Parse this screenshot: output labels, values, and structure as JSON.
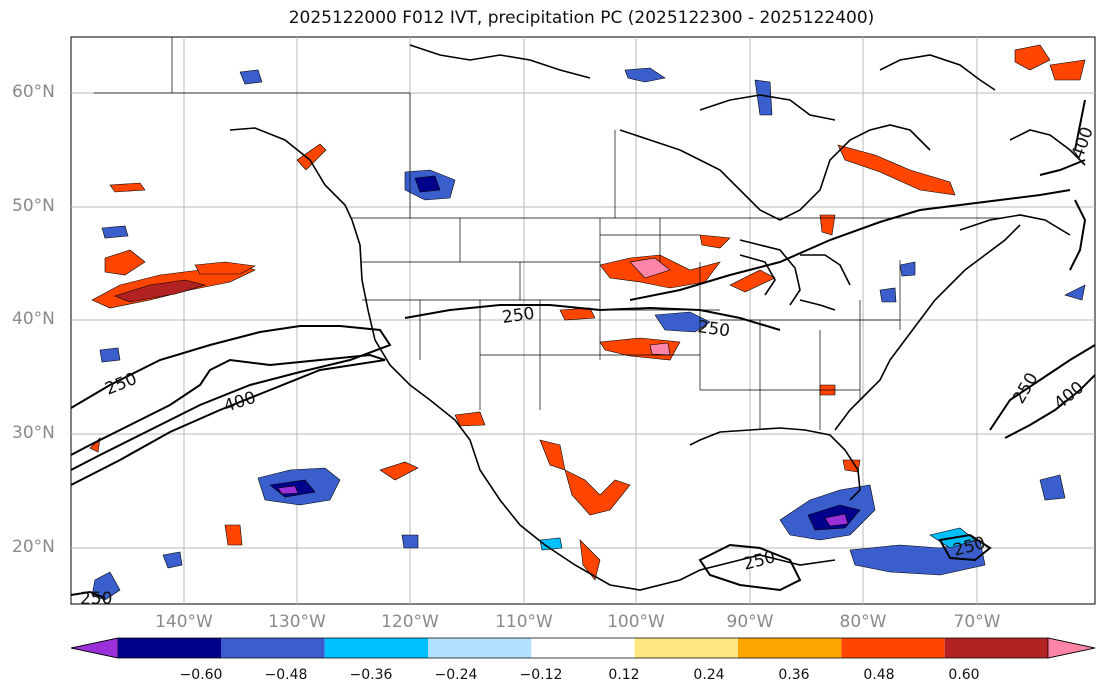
{
  "title": "2025122000 F012 IVT, precipitation PC (2025122300 - 2025122400)",
  "lat_labels": [
    "60°N",
    "50°N",
    "40°N",
    "30°N",
    "20°N"
  ],
  "lon_labels": [
    "140°W",
    "130°W",
    "120°W",
    "110°W",
    "100°W",
    "90°W",
    "80°W",
    "70°W"
  ],
  "contour_labels": [
    "250",
    "400",
    "250",
    "250",
    "250",
    "250",
    "400",
    "250",
    "400",
    "250"
  ],
  "colorbar": {
    "ticks": [
      "−0.60",
      "−0.48",
      "−0.36",
      "−0.24",
      "−0.12",
      "0.12",
      "0.24",
      "0.36",
      "0.48",
      "0.60"
    ],
    "colors": [
      "#9b30d9",
      "#00008b",
      "#3a5fcd",
      "#00bfff",
      "#b0e2ff",
      "#ffffff",
      "#ffe680",
      "#ffa500",
      "#ff4500",
      "#b22222",
      "#ff85a8"
    ]
  },
  "map": {
    "lat_range": [
      15,
      65
    ],
    "lon_range": [
      -150,
      -59
    ],
    "ivt_contour_levels": [
      250,
      400
    ]
  }
}
